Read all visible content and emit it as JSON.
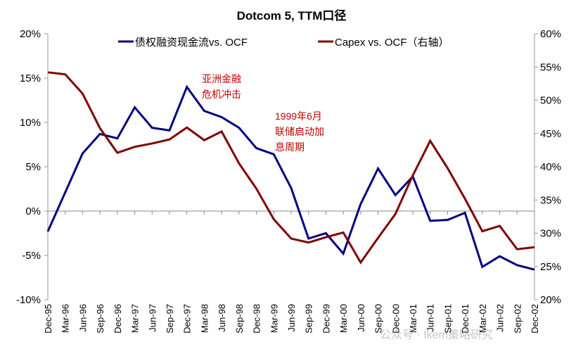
{
  "chart_data": {
    "type": "line",
    "title": "Dotcom 5, TTM口径",
    "categories": [
      "Dec-95",
      "Mar-96",
      "Jun-96",
      "Sep-96",
      "Dec-96",
      "Mar-97",
      "Jun-97",
      "Sep-97",
      "Dec-97",
      "Mar-98",
      "Jun-98",
      "Sep-98",
      "Dec-98",
      "Mar-99",
      "Jun-99",
      "Sep-99",
      "Dec-99",
      "Mar-00",
      "Jun-00",
      "Sep-00",
      "Dec-00",
      "Mar-01",
      "Jun-01",
      "Sep-01",
      "Dec-01",
      "Mar-02",
      "Jun-02",
      "Sep-02",
      "Dec-02"
    ],
    "series": [
      {
        "name": "债权融资现金流vs. OCF",
        "axis": "left",
        "color": "#000080",
        "values": [
          -2.3,
          2.1,
          6.5,
          8.7,
          8.2,
          11.7,
          9.4,
          9.1,
          14.0,
          11.3,
          10.6,
          9.4,
          7.1,
          6.4,
          2.6,
          -3.1,
          -2.5,
          -4.8,
          0.8,
          4.8,
          1.8,
          3.9,
          -1.1,
          -1.0,
          -0.2,
          -6.3,
          -5.1,
          -6.1,
          -6.6
        ]
      },
      {
        "name": "Capex vs. OCF（右轴）",
        "axis": "right",
        "color": "#800000",
        "values": [
          54.2,
          53.9,
          51.0,
          45.8,
          42.1,
          43.0,
          43.5,
          44.1,
          45.9,
          44.0,
          45.3,
          40.5,
          36.7,
          32.1,
          29.2,
          28.6,
          29.4,
          30.1,
          25.6,
          29.3,
          32.9,
          38.7,
          43.9,
          39.8,
          35.2,
          30.3,
          31.1,
          27.6,
          27.9
        ]
      }
    ],
    "y_left": {
      "range": [
        -10,
        20
      ],
      "ticks": [
        "-10%",
        "-5%",
        "0%",
        "5%",
        "10%",
        "15%",
        "20%"
      ]
    },
    "y_right": {
      "range": [
        20,
        60
      ],
      "ticks": [
        "20%",
        "25%",
        "30%",
        "35%",
        "40%",
        "45%",
        "50%",
        "55%",
        "60%"
      ]
    },
    "legend_placement": "top",
    "annotations": [
      {
        "lines": [
          "亚洲金融",
          "危机冲击"
        ]
      },
      {
        "lines": [
          "1999年6月",
          "联储启动加",
          "息周期"
        ]
      }
    ],
    "grid": false
  },
  "watermark": "公众号 · Ikem策略研究"
}
